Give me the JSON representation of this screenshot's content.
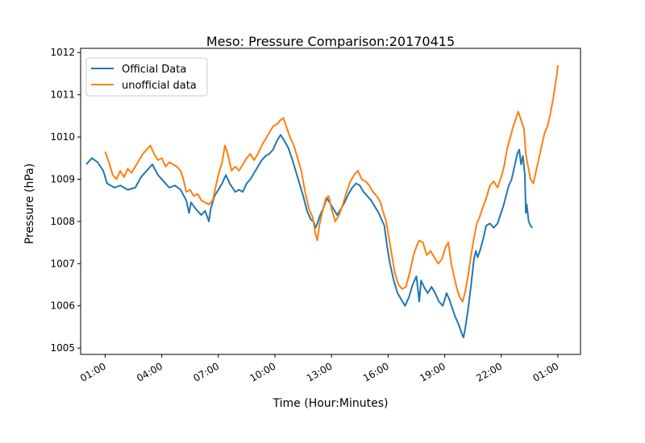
{
  "chart_data": {
    "type": "line",
    "title": "Meso: Pressure Comparison:20170415",
    "xlabel": "Time (Hour:Minutes)",
    "ylabel": "Pressure (hPa)",
    "x_unit": "hours",
    "xlim": [
      -1.3,
      25.2
    ],
    "ylim": [
      1004.85,
      1012.1
    ],
    "x_ticks": [
      {
        "x": 0,
        "label": "01:00"
      },
      {
        "x": 3,
        "label": "04:00"
      },
      {
        "x": 6,
        "label": "07:00"
      },
      {
        "x": 9,
        "label": "10:00"
      },
      {
        "x": 12,
        "label": "13:00"
      },
      {
        "x": 15,
        "label": "16:00"
      },
      {
        "x": 18,
        "label": "19:00"
      },
      {
        "x": 21,
        "label": "22:00"
      },
      {
        "x": 24,
        "label": "01:00"
      }
    ],
    "y_ticks": [
      1005,
      1006,
      1007,
      1008,
      1009,
      1010,
      1011,
      1012
    ],
    "legend_position": "upper-left",
    "series": [
      {
        "name": "Official Data",
        "color": "#1f77b4",
        "points": [
          [
            -1.0,
            1009.35
          ],
          [
            -0.7,
            1009.5
          ],
          [
            -0.4,
            1009.4
          ],
          [
            -0.1,
            1009.2
          ],
          [
            0.1,
            1008.9
          ],
          [
            0.5,
            1008.8
          ],
          [
            0.8,
            1008.85
          ],
          [
            1.2,
            1008.75
          ],
          [
            1.6,
            1008.8
          ],
          [
            1.9,
            1009.05
          ],
          [
            2.2,
            1009.2
          ],
          [
            2.5,
            1009.35
          ],
          [
            2.8,
            1009.1
          ],
          [
            3.1,
            1008.95
          ],
          [
            3.4,
            1008.8
          ],
          [
            3.7,
            1008.85
          ],
          [
            4.0,
            1008.75
          ],
          [
            4.3,
            1008.5
          ],
          [
            4.45,
            1008.2
          ],
          [
            4.55,
            1008.45
          ],
          [
            4.8,
            1008.3
          ],
          [
            5.1,
            1008.15
          ],
          [
            5.3,
            1008.25
          ],
          [
            5.5,
            1008.0
          ],
          [
            5.6,
            1008.3
          ],
          [
            5.8,
            1008.6
          ],
          [
            6.0,
            1008.75
          ],
          [
            6.2,
            1008.9
          ],
          [
            6.4,
            1009.1
          ],
          [
            6.6,
            1008.9
          ],
          [
            6.9,
            1008.7
          ],
          [
            7.1,
            1008.75
          ],
          [
            7.3,
            1008.7
          ],
          [
            7.5,
            1008.9
          ],
          [
            7.7,
            1009.0
          ],
          [
            7.9,
            1009.15
          ],
          [
            8.1,
            1009.3
          ],
          [
            8.3,
            1009.45
          ],
          [
            8.5,
            1009.55
          ],
          [
            8.7,
            1009.6
          ],
          [
            8.9,
            1009.7
          ],
          [
            9.1,
            1009.9
          ],
          [
            9.3,
            1010.05
          ],
          [
            9.45,
            1009.95
          ],
          [
            9.7,
            1009.75
          ],
          [
            9.9,
            1009.5
          ],
          [
            10.1,
            1009.2
          ],
          [
            10.3,
            1008.9
          ],
          [
            10.5,
            1008.6
          ],
          [
            10.7,
            1008.25
          ],
          [
            10.9,
            1008.05
          ],
          [
            11.05,
            1008.0
          ],
          [
            11.15,
            1007.85
          ],
          [
            11.25,
            1007.95
          ],
          [
            11.4,
            1008.15
          ],
          [
            11.6,
            1008.35
          ],
          [
            11.75,
            1008.55
          ],
          [
            11.9,
            1008.45
          ],
          [
            12.1,
            1008.3
          ],
          [
            12.3,
            1008.15
          ],
          [
            12.5,
            1008.3
          ],
          [
            12.7,
            1008.45
          ],
          [
            12.9,
            1008.65
          ],
          [
            13.1,
            1008.8
          ],
          [
            13.3,
            1008.9
          ],
          [
            13.5,
            1008.85
          ],
          [
            13.7,
            1008.7
          ],
          [
            13.9,
            1008.6
          ],
          [
            14.1,
            1008.5
          ],
          [
            14.3,
            1008.35
          ],
          [
            14.5,
            1008.2
          ],
          [
            14.7,
            1008.0
          ],
          [
            14.8,
            1007.9
          ],
          [
            14.95,
            1007.4
          ],
          [
            15.1,
            1007.0
          ],
          [
            15.3,
            1006.6
          ],
          [
            15.5,
            1006.3
          ],
          [
            15.7,
            1006.15
          ],
          [
            15.9,
            1006.0
          ],
          [
            16.1,
            1006.2
          ],
          [
            16.3,
            1006.5
          ],
          [
            16.5,
            1006.7
          ],
          [
            16.65,
            1006.1
          ],
          [
            16.75,
            1006.6
          ],
          [
            16.9,
            1006.45
          ],
          [
            17.1,
            1006.3
          ],
          [
            17.3,
            1006.45
          ],
          [
            17.5,
            1006.3
          ],
          [
            17.7,
            1006.1
          ],
          [
            17.9,
            1006.0
          ],
          [
            18.1,
            1006.3
          ],
          [
            18.25,
            1006.15
          ],
          [
            18.4,
            1005.95
          ],
          [
            18.55,
            1005.75
          ],
          [
            18.75,
            1005.55
          ],
          [
            18.9,
            1005.35
          ],
          [
            19.0,
            1005.25
          ],
          [
            19.1,
            1005.5
          ],
          [
            19.25,
            1005.95
          ],
          [
            19.4,
            1006.5
          ],
          [
            19.55,
            1007.1
          ],
          [
            19.65,
            1007.3
          ],
          [
            19.75,
            1007.15
          ],
          [
            19.9,
            1007.35
          ],
          [
            20.05,
            1007.6
          ],
          [
            20.2,
            1007.9
          ],
          [
            20.4,
            1007.95
          ],
          [
            20.6,
            1007.85
          ],
          [
            20.8,
            1007.95
          ],
          [
            20.95,
            1008.15
          ],
          [
            21.1,
            1008.35
          ],
          [
            21.25,
            1008.6
          ],
          [
            21.4,
            1008.85
          ],
          [
            21.55,
            1009.0
          ],
          [
            21.7,
            1009.3
          ],
          [
            21.85,
            1009.6
          ],
          [
            21.95,
            1009.7
          ],
          [
            22.05,
            1009.35
          ],
          [
            22.15,
            1009.55
          ],
          [
            22.25,
            1009.1
          ],
          [
            22.3,
            1008.2
          ],
          [
            22.35,
            1008.4
          ],
          [
            22.45,
            1008.0
          ],
          [
            22.55,
            1007.9
          ],
          [
            22.65,
            1007.85
          ]
        ]
      },
      {
        "name": "unofficial data",
        "color": "#ff7f0e",
        "points": [
          [
            0.0,
            1009.65
          ],
          [
            0.2,
            1009.4
          ],
          [
            0.4,
            1009.1
          ],
          [
            0.6,
            1009.0
          ],
          [
            0.8,
            1009.2
          ],
          [
            1.0,
            1009.05
          ],
          [
            1.2,
            1009.25
          ],
          [
            1.4,
            1009.15
          ],
          [
            1.6,
            1009.3
          ],
          [
            1.8,
            1009.45
          ],
          [
            2.0,
            1009.6
          ],
          [
            2.2,
            1009.7
          ],
          [
            2.4,
            1009.8
          ],
          [
            2.6,
            1009.6
          ],
          [
            2.8,
            1009.45
          ],
          [
            3.0,
            1009.5
          ],
          [
            3.2,
            1009.3
          ],
          [
            3.4,
            1009.4
          ],
          [
            3.6,
            1009.35
          ],
          [
            3.8,
            1009.3
          ],
          [
            4.0,
            1009.2
          ],
          [
            4.15,
            1009.0
          ],
          [
            4.3,
            1008.7
          ],
          [
            4.5,
            1008.75
          ],
          [
            4.7,
            1008.6
          ],
          [
            4.9,
            1008.65
          ],
          [
            5.1,
            1008.5
          ],
          [
            5.3,
            1008.45
          ],
          [
            5.5,
            1008.4
          ],
          [
            5.7,
            1008.5
          ],
          [
            5.85,
            1008.8
          ],
          [
            6.0,
            1009.1
          ],
          [
            6.2,
            1009.4
          ],
          [
            6.35,
            1009.8
          ],
          [
            6.5,
            1009.6
          ],
          [
            6.7,
            1009.2
          ],
          [
            6.9,
            1009.3
          ],
          [
            7.1,
            1009.2
          ],
          [
            7.3,
            1009.35
          ],
          [
            7.5,
            1009.5
          ],
          [
            7.7,
            1009.6
          ],
          [
            7.9,
            1009.45
          ],
          [
            8.1,
            1009.6
          ],
          [
            8.3,
            1009.8
          ],
          [
            8.5,
            1009.95
          ],
          [
            8.7,
            1010.1
          ],
          [
            8.9,
            1010.25
          ],
          [
            9.1,
            1010.3
          ],
          [
            9.3,
            1010.4
          ],
          [
            9.45,
            1010.45
          ],
          [
            9.6,
            1010.25
          ],
          [
            9.8,
            1010.0
          ],
          [
            10.0,
            1009.8
          ],
          [
            10.2,
            1009.5
          ],
          [
            10.4,
            1009.2
          ],
          [
            10.6,
            1008.7
          ],
          [
            10.8,
            1008.3
          ],
          [
            11.0,
            1008.1
          ],
          [
            11.15,
            1007.7
          ],
          [
            11.25,
            1007.55
          ],
          [
            11.35,
            1007.9
          ],
          [
            11.5,
            1008.2
          ],
          [
            11.7,
            1008.55
          ],
          [
            11.85,
            1008.6
          ],
          [
            12.0,
            1008.3
          ],
          [
            12.2,
            1008.0
          ],
          [
            12.4,
            1008.15
          ],
          [
            12.6,
            1008.4
          ],
          [
            12.8,
            1008.7
          ],
          [
            13.0,
            1008.95
          ],
          [
            13.2,
            1009.1
          ],
          [
            13.4,
            1009.2
          ],
          [
            13.6,
            1009.0
          ],
          [
            13.8,
            1008.95
          ],
          [
            14.0,
            1008.85
          ],
          [
            14.2,
            1008.7
          ],
          [
            14.4,
            1008.6
          ],
          [
            14.6,
            1008.45
          ],
          [
            14.75,
            1008.2
          ],
          [
            14.9,
            1008.0
          ],
          [
            15.05,
            1007.6
          ],
          [
            15.2,
            1007.2
          ],
          [
            15.35,
            1006.8
          ],
          [
            15.55,
            1006.5
          ],
          [
            15.75,
            1006.4
          ],
          [
            15.95,
            1006.45
          ],
          [
            16.15,
            1006.8
          ],
          [
            16.35,
            1007.2
          ],
          [
            16.5,
            1007.4
          ],
          [
            16.65,
            1007.55
          ],
          [
            16.85,
            1007.5
          ],
          [
            17.05,
            1007.2
          ],
          [
            17.25,
            1007.3
          ],
          [
            17.45,
            1007.15
          ],
          [
            17.65,
            1007.0
          ],
          [
            17.85,
            1007.1
          ],
          [
            18.05,
            1007.4
          ],
          [
            18.2,
            1007.5
          ],
          [
            18.35,
            1007.0
          ],
          [
            18.5,
            1006.7
          ],
          [
            18.65,
            1006.4
          ],
          [
            18.8,
            1006.2
          ],
          [
            18.95,
            1006.1
          ],
          [
            19.1,
            1006.35
          ],
          [
            19.25,
            1006.75
          ],
          [
            19.4,
            1007.2
          ],
          [
            19.55,
            1007.6
          ],
          [
            19.7,
            1007.95
          ],
          [
            19.85,
            1008.1
          ],
          [
            20.0,
            1008.3
          ],
          [
            20.2,
            1008.55
          ],
          [
            20.4,
            1008.85
          ],
          [
            20.6,
            1008.95
          ],
          [
            20.8,
            1008.8
          ],
          [
            21.0,
            1009.05
          ],
          [
            21.15,
            1009.3
          ],
          [
            21.3,
            1009.7
          ],
          [
            21.45,
            1009.95
          ],
          [
            21.6,
            1010.2
          ],
          [
            21.75,
            1010.4
          ],
          [
            21.9,
            1010.6
          ],
          [
            22.05,
            1010.4
          ],
          [
            22.2,
            1010.2
          ],
          [
            22.3,
            1009.6
          ],
          [
            22.4,
            1009.35
          ],
          [
            22.55,
            1009.0
          ],
          [
            22.7,
            1008.9
          ],
          [
            22.85,
            1009.2
          ],
          [
            23.0,
            1009.5
          ],
          [
            23.15,
            1009.8
          ],
          [
            23.3,
            1010.1
          ],
          [
            23.45,
            1010.25
          ],
          [
            23.6,
            1010.55
          ],
          [
            23.75,
            1010.9
          ],
          [
            23.85,
            1011.2
          ],
          [
            23.95,
            1011.5
          ],
          [
            24.0,
            1011.7
          ]
        ]
      }
    ]
  }
}
